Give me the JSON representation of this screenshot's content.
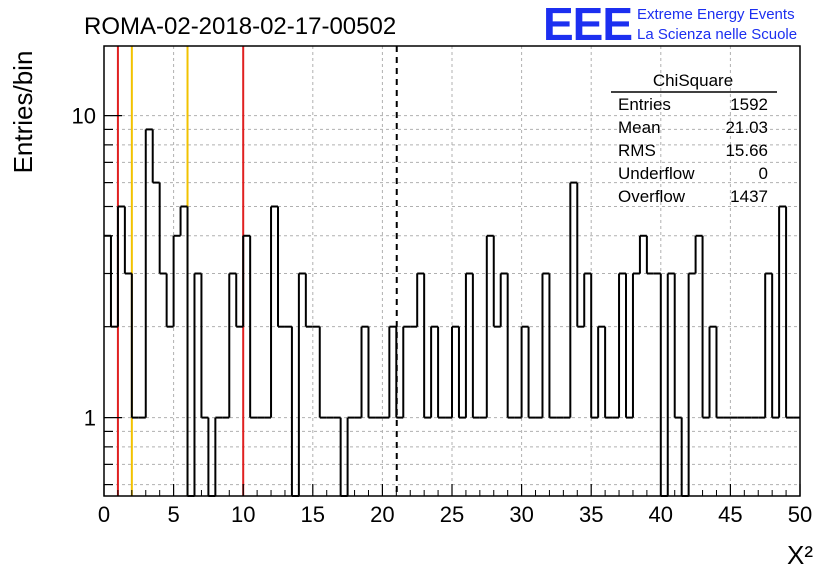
{
  "header": {
    "run_title": "ROMA-02-2018-02-17-00502",
    "logo_text": "EEE",
    "logo_line1": "Extreme Energy Events",
    "logo_line2": "La Scienza nelle Scuole"
  },
  "stats_box": {
    "title": "ChiSquare",
    "rows": [
      {
        "label": "Entries",
        "value": "1592"
      },
      {
        "label": "Mean",
        "value": "21.03"
      },
      {
        "label": "RMS",
        "value": "15.66"
      },
      {
        "label": "Underflow",
        "value": "0"
      },
      {
        "label": "Overflow",
        "value": "1437"
      }
    ]
  },
  "colors": {
    "histogram": "#000000",
    "red_lines": "#e02020",
    "yellow_lines": "#f2c200",
    "grid": "#b0b0b0",
    "logo": "#1c2ff0"
  },
  "chart_data": {
    "type": "histogram",
    "ylabel": "Entries/bin",
    "xlabel": "X²",
    "xlim": [
      0,
      50
    ],
    "ylim": [
      0.55,
      17
    ],
    "y_scale": "log",
    "grid": true,
    "bin_width": 1,
    "bin_edges_start": 0,
    "values": [
      4,
      2,
      5,
      3,
      1,
      1,
      9,
      6,
      3,
      2,
      4,
      5,
      0,
      3,
      1,
      0,
      1,
      1,
      3,
      2,
      4,
      1,
      1,
      1,
      5,
      2,
      2,
      0,
      3,
      2,
      2,
      1,
      1,
      1,
      0,
      1,
      1,
      2,
      1,
      1,
      1,
      2,
      1,
      2,
      2,
      3,
      1,
      2,
      1,
      1,
      2,
      1,
      3,
      1,
      1,
      4,
      2,
      3,
      1,
      1,
      2,
      1,
      1,
      3,
      1,
      1,
      1,
      6,
      2,
      3,
      1,
      2,
      1,
      1,
      3,
      1,
      3,
      4,
      3,
      3,
      0,
      3,
      1,
      0,
      3,
      4,
      1,
      2,
      1,
      1,
      1,
      1,
      1,
      1,
      1,
      3,
      1,
      5,
      1,
      1
    ],
    "x_ticks": [
      "0",
      "5",
      "10",
      "15",
      "20",
      "25",
      "30",
      "35",
      "40",
      "45",
      "50"
    ],
    "y_ticks": [
      {
        "value": 1,
        "label": "1"
      },
      {
        "value": 10,
        "label": "10"
      }
    ],
    "vertical_markers": [
      {
        "x": 1,
        "color": "red",
        "style": "solid"
      },
      {
        "x": 2,
        "color": "yellow",
        "style": "solid"
      },
      {
        "x": 6,
        "color": "yellow",
        "style": "solid"
      },
      {
        "x": 10,
        "color": "red",
        "style": "solid"
      },
      {
        "x": 21.03,
        "color": "black",
        "style": "dashed"
      }
    ]
  }
}
